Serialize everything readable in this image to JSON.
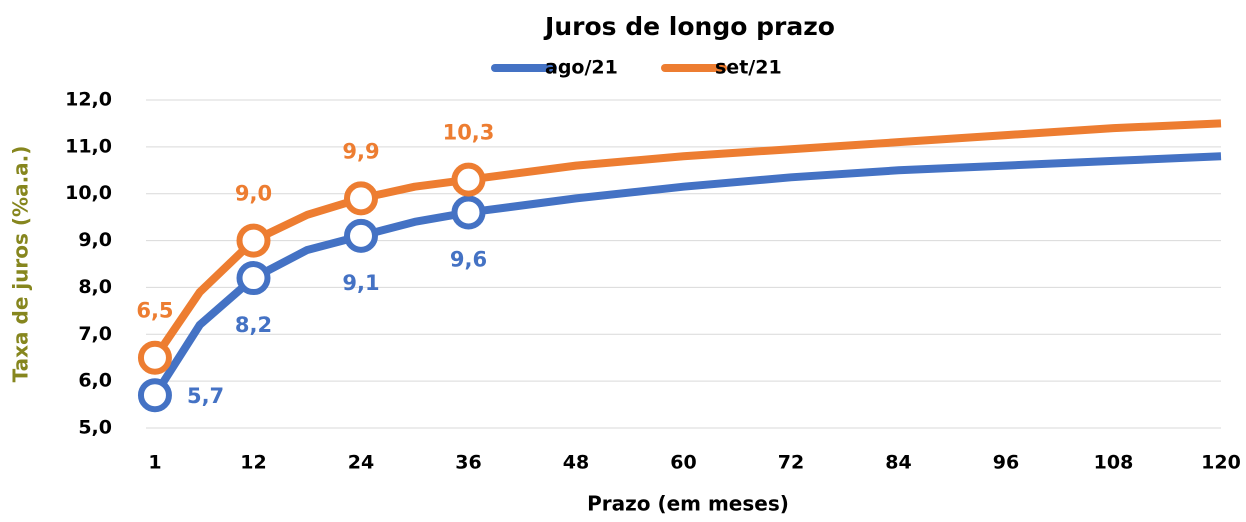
{
  "chart_data": {
    "type": "line",
    "title": "Juros de longo prazo",
    "x_label": "Prazo (em meses)",
    "y_label": "Taxa de juros (%a.a.)",
    "y_label_color": "#86861e",
    "x": [
      1,
      6,
      12,
      18,
      24,
      30,
      36,
      48,
      60,
      72,
      84,
      96,
      108,
      120
    ],
    "xlim": [
      0,
      120
    ],
    "xticks": [
      1,
      12,
      24,
      36,
      48,
      60,
      72,
      84,
      96,
      108,
      120
    ],
    "ylim": [
      5,
      12
    ],
    "yticks": [
      {
        "value": 5,
        "label": "5,0"
      },
      {
        "value": 6,
        "label": "6,0"
      },
      {
        "value": 7,
        "label": "7,0"
      },
      {
        "value": 8,
        "label": "8,0"
      },
      {
        "value": 9,
        "label": "9,0"
      },
      {
        "value": 10,
        "label": "10,0"
      },
      {
        "value": 11,
        "label": "11,0"
      },
      {
        "value": 12,
        "label": "12,0"
      }
    ],
    "grid": true,
    "legend": "top",
    "series": [
      {
        "name": "ago/21",
        "color": "#4472c4",
        "values": [
          5.7,
          7.2,
          8.2,
          8.8,
          9.1,
          9.4,
          9.6,
          9.9,
          10.15,
          10.35,
          10.5,
          10.6,
          10.7,
          10.8
        ],
        "value_labels": [
          "5,7",
          null,
          "8,2",
          null,
          "9,1",
          null,
          "9,6",
          null,
          null,
          null,
          null,
          null,
          null,
          null
        ]
      },
      {
        "name": "set/21",
        "color": "#ed7d31",
        "values": [
          6.5,
          7.9,
          9.0,
          9.55,
          9.9,
          10.15,
          10.3,
          10.6,
          10.8,
          10.95,
          11.1,
          11.25,
          11.4,
          11.5
        ],
        "value_labels": [
          "6,5",
          null,
          "9,0",
          null,
          "9,9",
          null,
          "10,3",
          null,
          null,
          null,
          null,
          null,
          null,
          null
        ]
      }
    ]
  }
}
